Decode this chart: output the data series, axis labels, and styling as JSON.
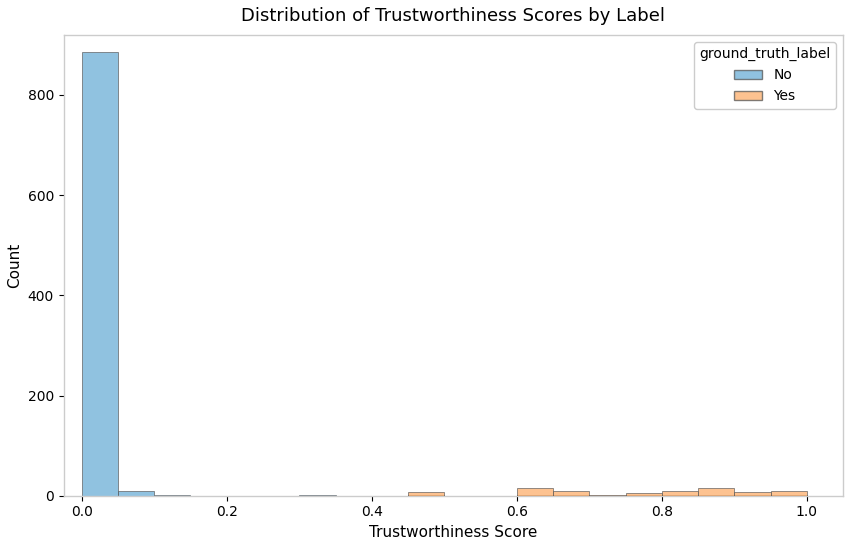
{
  "title": "Distribution of Trustworthiness Scores by Label",
  "xlabel": "Trustworthiness Score",
  "ylabel": "Count",
  "legend_title": "ground_truth_label",
  "labels": [
    "No",
    "Yes"
  ],
  "colors": [
    "#6baed6",
    "#fdae6b"
  ],
  "no_bin_edges": [
    0.0,
    0.05,
    0.1,
    0.15,
    0.2,
    0.25,
    0.3,
    0.35,
    0.4,
    0.45,
    0.5,
    0.55,
    0.6,
    0.65,
    0.7,
    0.75,
    0.8,
    0.85,
    0.9,
    0.95,
    1.0
  ],
  "no_counts": [
    885,
    10,
    1,
    0,
    0,
    0,
    1,
    0,
    0,
    1,
    0,
    0,
    2,
    1,
    0,
    1,
    2,
    1,
    1,
    1,
    0
  ],
  "yes_bin_edges": [
    0.0,
    0.05,
    0.1,
    0.15,
    0.2,
    0.25,
    0.3,
    0.35,
    0.4,
    0.45,
    0.5,
    0.55,
    0.6,
    0.65,
    0.7,
    0.75,
    0.8,
    0.85,
    0.9,
    0.95,
    1.0
  ],
  "yes_counts": [
    0,
    0,
    0,
    0,
    0,
    0,
    0,
    0,
    0,
    8,
    0,
    0,
    15,
    10,
    2,
    5,
    10,
    15,
    8,
    10,
    0
  ],
  "xlim": [
    -0.025,
    1.05
  ],
  "ylim": [
    0,
    920
  ],
  "bin_width": 0.05,
  "alpha": 0.75,
  "edgecolor": "#555555",
  "figsize": [
    8.5,
    5.47
  ],
  "dpi": 100,
  "bg_color": "#ffffff",
  "spine_color": "#cccccc",
  "title_fontsize": 13,
  "label_fontsize": 11,
  "tick_fontsize": 10,
  "legend_fontsize": 10
}
